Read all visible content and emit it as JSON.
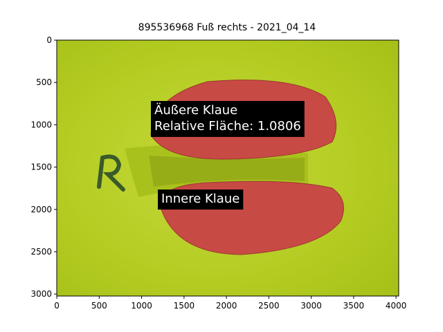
{
  "chart_data": {
    "type": "image",
    "title": "895536968 Fuß rechts - 2021_04_14",
    "xlim": [
      -0.5,
      4031.5
    ],
    "ylim": [
      3023.5,
      -0.5
    ],
    "xticks": [
      0,
      500,
      1000,
      1500,
      2000,
      2500,
      3000,
      3500,
      4000
    ],
    "yticks": [
      0,
      500,
      1000,
      1500,
      2000,
      2500,
      3000
    ],
    "annotations": [
      {
        "lines": [
          "Äußere Klaue",
          "Relative Fläche: 1.0806"
        ]
      },
      {
        "lines": [
          "Innere Klaue"
        ]
      }
    ]
  }
}
